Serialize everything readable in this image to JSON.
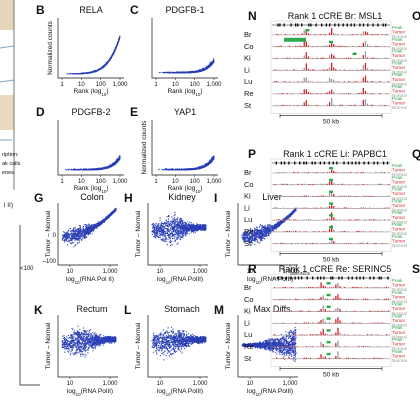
{
  "colors": {
    "scatter": "#2a3fb5",
    "peak_green": "#2fa84f",
    "tumor_red": "#d1232a",
    "normal_gray": "#9a9a9a",
    "track_tick": "#444444"
  },
  "left_annotation": {
    "line1": "ription:",
    "line2": "ak calls",
    "line3": "enes"
  },
  "top_panels": [
    {
      "letter": "B",
      "title": "RELA",
      "ylabel": "Normalized counts",
      "xlabel": "Rank (log10)",
      "xticks": [
        "1",
        "10",
        "100",
        "1,000"
      ],
      "shape": "rising"
    },
    {
      "letter": "C",
      "title": "PDGFB-1",
      "ylabel": "",
      "xlabel": "Rank (log10)",
      "xticks": [
        "1",
        "10",
        "100",
        "1,000"
      ],
      "shape": "flat"
    },
    {
      "letter": "D",
      "title": "PDGFB-2",
      "ylabel": "",
      "xlabel": "Rank (log10)",
      "xticks": [
        "1",
        "10",
        "100",
        "1,000"
      ],
      "shape": "flat"
    },
    {
      "letter": "E",
      "title": "YAP1",
      "ylabel": "Normalized counts",
      "xlabel": "Rank (log10)",
      "xticks": [
        "1",
        "10",
        "100",
        "1,000"
      ],
      "shape": "flat"
    }
  ],
  "diff_panels": [
    {
      "letter": "G",
      "title": "Colon",
      "ylabel": "Tumor – Normal",
      "xlabel": "log10(RNA Pol II)",
      "yticks": [
        "0",
        "–100"
      ],
      "xticks": [
        "10",
        "1,000"
      ],
      "shape": "up"
    },
    {
      "letter": "H",
      "title": "Kidney",
      "ylabel": "Tumor – Normal",
      "xlabel": "log10(RNA PolII)",
      "yticks": [],
      "xticks": [
        "10",
        "1,000"
      ],
      "shape": "blob"
    },
    {
      "letter": "I",
      "title": "Liver",
      "ylabel": "Tumor – Normal",
      "xlabel": "log10(RNA PolII)",
      "yticks": [],
      "xticks": [
        "10",
        "1,000"
      ],
      "shape": "up"
    },
    {
      "letter": "K",
      "title": "Rectum",
      "ylabel": "Tumor – Normal",
      "xlabel": "log10(RNA PolII)",
      "yticks": [],
      "xticks": [
        "10",
        "1,000"
      ],
      "shape": "blob"
    },
    {
      "letter": "L",
      "title": "Stomach",
      "ylabel": "Tumor – Normal",
      "xlabel": "log10(RNA PolII)",
      "yticks": [],
      "xticks": [
        "10",
        "1,000"
      ],
      "shape": "blob"
    },
    {
      "letter": "M",
      "title": "Max Diffs",
      "ylabel": "Tumor – Normal",
      "xlabel": "log10(RNA PolII)",
      "yticks": [],
      "xticks": [
        "10",
        "1,000"
      ],
      "shape": "sym"
    }
  ],
  "partial_left": {
    "g_ylabel_fragment": "l II)",
    "g_ytick_bottom": "<100"
  },
  "partial_letters": [
    "O",
    "Q",
    "S"
  ],
  "track_panels": [
    {
      "letter": "N",
      "title": "Rank 1 cCRE Br: MSL1",
      "gene_label": "",
      "scale": "50 kb",
      "mode": "wide"
    },
    {
      "letter": "P",
      "title": "Rank 1 cCRE Li: PAPBC1",
      "gene_label": "",
      "scale": "50 kb",
      "mode": "center"
    },
    {
      "letter": "R",
      "title": "Rank 1 cCRE Re: SERINC5",
      "gene_label": "SERINC5",
      "scale": "50 kb",
      "mode": "center2"
    }
  ],
  "track_rows": [
    "Br",
    "Co",
    "Ki",
    "Li",
    "Lu",
    "Re",
    "St"
  ],
  "track_legend": [
    "Peak",
    "Tumor",
    "Normal"
  ]
}
